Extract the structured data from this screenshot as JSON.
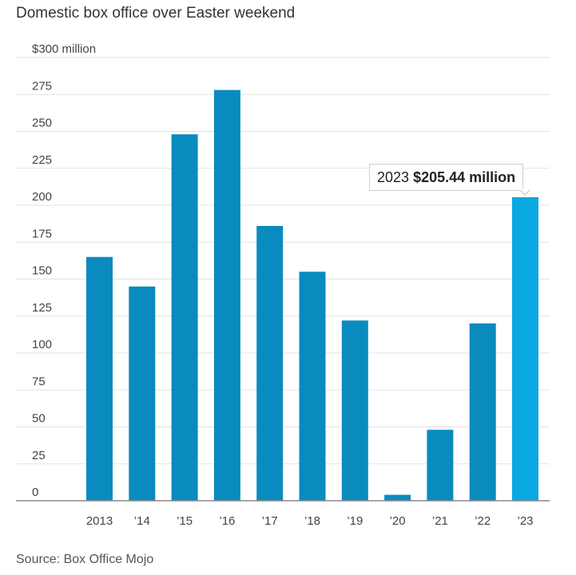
{
  "chart_data": {
    "type": "bar",
    "title": "Domestic box office over Easter weekend",
    "xlabel": "",
    "ylabel": "",
    "ylim": [
      0,
      300
    ],
    "yticks": [
      0,
      25,
      50,
      75,
      100,
      125,
      150,
      175,
      200,
      225,
      250,
      275,
      300
    ],
    "ytick_labels": [
      "0",
      "25",
      "50",
      "75",
      "100",
      "125",
      "150",
      "175",
      "200",
      "225",
      "250",
      "275",
      "$300 million"
    ],
    "categories": [
      "2013",
      "’14",
      "’15",
      "’16",
      "’17",
      "’18",
      "’19",
      "’20",
      "’21",
      "’22",
      "’23"
    ],
    "values": [
      165,
      145,
      248,
      278,
      186,
      155,
      122,
      4,
      48,
      120,
      205.44
    ],
    "highlight_index": 10,
    "bar_color": "#0a8bbf",
    "highlight_color": "#0aa8e0",
    "grid": true,
    "annotation": {
      "year": "2023",
      "value_label": "$205.44 million"
    },
    "source": "Source: Box Office Mojo"
  }
}
